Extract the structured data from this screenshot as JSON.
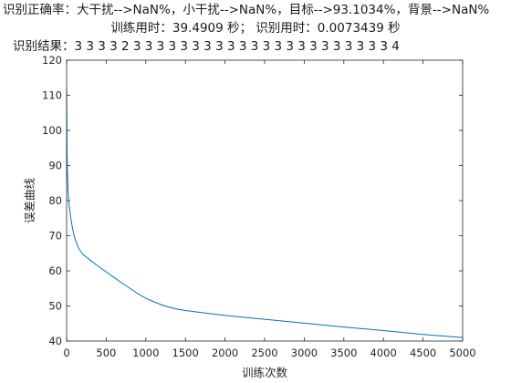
{
  "title_lines": {
    "line1": "识别正确率：大干扰-->NaN%，小干扰-->NaN%，目标-->93.1034%，背景-->NaN%",
    "line2": "训练用时：39.4909 秒；  识别用时：0.0073439 秒",
    "line3": "识别结果：3  3  3  3  2  3  3  3  3  3  3  3  3  3  3  3  3  3  3  3  3  3  3  3  3  3  3  4"
  },
  "chart_data": {
    "type": "line",
    "title": "",
    "xlabel": "训练次数",
    "ylabel": "误差曲线",
    "xlim": [
      0,
      5000
    ],
    "ylim": [
      40,
      120
    ],
    "xticks": [
      0,
      500,
      1000,
      1500,
      2000,
      2500,
      3000,
      3500,
      4000,
      4500,
      5000
    ],
    "yticks": [
      40,
      50,
      60,
      70,
      80,
      90,
      100,
      110,
      120
    ],
    "grid": false,
    "legend": "none",
    "series": [
      {
        "color": "#0072BD",
        "x": [
          0,
          5,
          10,
          20,
          30,
          50,
          75,
          100,
          150,
          200,
          300,
          400,
          500,
          600,
          700,
          800,
          900,
          1000,
          1100,
          1200,
          1300,
          1400,
          1500,
          1750,
          2000,
          2500,
          3000,
          3500,
          4000,
          4500,
          5000
        ],
        "y": [
          112,
          95,
          88,
          82,
          79,
          75.5,
          72,
          69.5,
          66.5,
          64.8,
          63,
          61.3,
          59.7,
          58.1,
          56.5,
          55,
          53.5,
          52.2,
          51.2,
          50.3,
          49.6,
          49.1,
          48.7,
          48,
          47.3,
          46.2,
          45.1,
          44,
          43,
          41.9,
          41
        ]
      }
    ]
  }
}
